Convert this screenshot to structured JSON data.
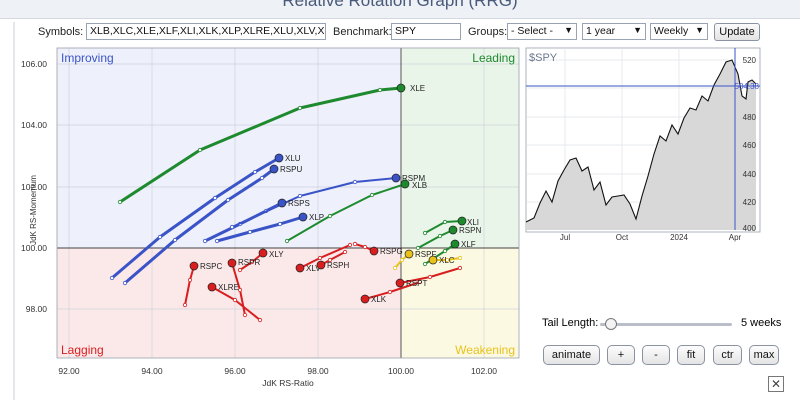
{
  "app": {
    "title": "Relative Rotation Graph (RRG)"
  },
  "toolbar": {
    "symbols_label": "Symbols:",
    "symbols_value": "XLB,XLC,XLE,XLF,XLI,XLK,XLP,XLRE,XLU,XLV,XL",
    "benchmark_label": "Benchmark:",
    "benchmark_value": "SPY",
    "groups_label": "Groups:",
    "groups_value": "- Select -",
    "period_value": "1 year",
    "interval_value": "Weekly",
    "update_label": "Update"
  },
  "rrg": {
    "quadrants": {
      "improving": "Improving",
      "leading": "Leading",
      "lagging": "Lagging",
      "weakening": "Weakening"
    },
    "x_axis_label": "JdK RS-Ratio",
    "y_axis_label": "JdK RS-Momentum",
    "x_ticks": [
      "92.00",
      "94.00",
      "96.00",
      "98.00",
      "100.00",
      "102.00"
    ],
    "y_ticks": [
      "106.00",
      "104.00",
      "102.00",
      "100.00",
      "98.00"
    ],
    "colors": {
      "improving": "#3a54c8",
      "leading": "#1e8a2e",
      "lagging": "#d81e1e",
      "weakening": "#e8c21a",
      "improving_bg": "#eef0fb",
      "leading_bg": "#eaf5ea",
      "lagging_bg": "#fbe9ea",
      "weakening_bg": "#fcf9e2"
    },
    "symbols": [
      {
        "label": "XLE",
        "quadrant": "leading"
      },
      {
        "label": "XLU",
        "quadrant": "improving"
      },
      {
        "label": "RSPU",
        "quadrant": "improving"
      },
      {
        "label": "RSPS",
        "quadrant": "improving"
      },
      {
        "label": "XLP",
        "quadrant": "improving"
      },
      {
        "label": "RSPM",
        "quadrant": "improving"
      },
      {
        "label": "XLB",
        "quadrant": "leading"
      },
      {
        "label": "XLI",
        "quadrant": "leading"
      },
      {
        "label": "RSPN",
        "quadrant": "leading"
      },
      {
        "label": "XLF",
        "quadrant": "leading"
      },
      {
        "label": "XLY",
        "quadrant": "lagging"
      },
      {
        "label": "RSPC",
        "quadrant": "lagging"
      },
      {
        "label": "RSPR",
        "quadrant": "lagging"
      },
      {
        "label": "XLRE",
        "quadrant": "lagging"
      },
      {
        "label": "XLV",
        "quadrant": "lagging"
      },
      {
        "label": "RSPH",
        "quadrant": "lagging"
      },
      {
        "label": "RSPG",
        "quadrant": "lagging"
      },
      {
        "label": "RSPF",
        "quadrant": "weakening"
      },
      {
        "label": "XLC",
        "quadrant": "weakening"
      },
      {
        "label": "RSPT",
        "quadrant": "lagging"
      },
      {
        "label": "XLK",
        "quadrant": "lagging"
      }
    ]
  },
  "spy_panel": {
    "label": "$SPY",
    "last_value": "504.38",
    "y_ticks": [
      "520",
      "500",
      "480",
      "460",
      "440",
      "420",
      "400"
    ],
    "x_ticks": [
      "Jul",
      "Oct",
      "2024",
      "Apr"
    ],
    "line_color": "#111111",
    "area_color": "#d8d8d8",
    "marker_color": "#3a54c8"
  },
  "controls": {
    "tail_length_label": "Tail Length:",
    "tail_length_value": "5 weeks",
    "tail_length_fraction": 0.08,
    "buttons": [
      "animate",
      "+",
      "-",
      "fit",
      "ctr",
      "max"
    ]
  }
}
